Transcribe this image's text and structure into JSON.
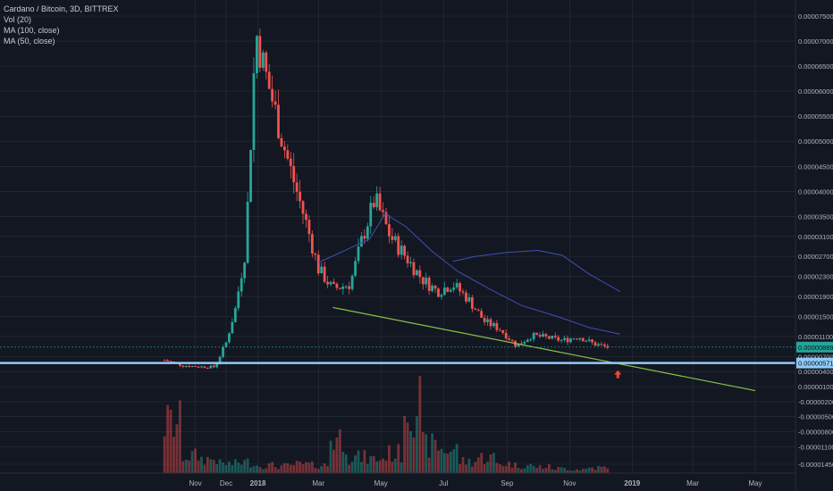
{
  "header": {
    "title": "Cardano / Bitcoin, 3D, BITTREX",
    "indicators": [
      "Vol (20)",
      "MA (100, close)",
      "MA (50, close)"
    ]
  },
  "colors": {
    "background": "#131722",
    "grid": "#2a2e39",
    "up": "#26a69a",
    "down": "#ef5350",
    "ma": "#3f51b5",
    "trendline": "#8bc34a",
    "support": "#90caf9",
    "arrow": "#f44336"
  },
  "chart_data": {
    "type": "candlestick",
    "title": "Cardano / Bitcoin, 3D, BITTREX",
    "price_axis": {
      "ticks": [
        "0.00007500",
        "0.00007000",
        "0.00006500",
        "0.00006000",
        "0.00005500",
        "0.00005000",
        "0.00004500",
        "0.00004000",
        "0.00003500",
        "0.00003100",
        "0.00002700",
        "0.00002300",
        "0.00001900",
        "0.00001500",
        "0.00001100",
        "0.00000700",
        "0.00000400",
        "0.00000100",
        "-0.00000200",
        "-0.00000500",
        "-0.00000800",
        "-0.00001100",
        "-0.00001450"
      ],
      "current_price": "0.00000889",
      "support_price": "0.00000571"
    },
    "time_axis": {
      "labels": [
        "Nov",
        "Dec",
        "2018",
        "Mar",
        "May",
        "Jul",
        "Sep",
        "Nov",
        "2019",
        "Mar",
        "May"
      ]
    },
    "series_close_points": [
      [
        "2017-10-02",
        6.3e-06
      ],
      [
        "2017-10-20",
        5.2e-06
      ],
      [
        "2017-11-05",
        5e-06
      ],
      [
        "2017-11-20",
        4.9e-06
      ],
      [
        "2017-12-01",
        9.8e-06
      ],
      [
        "2017-12-10",
        1.65e-05
      ],
      [
        "2017-12-20",
        2.85e-05
      ],
      [
        "2017-12-30",
        7.2e-05
      ],
      [
        "2018-01-07",
        6.45e-05
      ],
      [
        "2018-01-16",
        5.75e-05
      ],
      [
        "2018-01-25",
        5e-05
      ],
      [
        "2018-02-05",
        4.2e-05
      ],
      [
        "2018-02-18",
        3.3e-05
      ],
      [
        "2018-03-01",
        2.45e-05
      ],
      [
        "2018-03-15",
        2.05e-05
      ],
      [
        "2018-04-01",
        2.15e-05
      ],
      [
        "2018-04-12",
        3e-05
      ],
      [
        "2018-04-25",
        3.85e-05
      ],
      [
        "2018-05-10",
        3.1e-05
      ],
      [
        "2018-05-25",
        2.7e-05
      ],
      [
        "2018-06-10",
        2.25e-05
      ],
      [
        "2018-06-25",
        2e-05
      ],
      [
        "2018-07-10",
        2.15e-05
      ],
      [
        "2018-07-25",
        1.85e-05
      ],
      [
        "2018-08-10",
        1.4e-05
      ],
      [
        "2018-08-25",
        1.25e-05
      ],
      [
        "2018-09-10",
        9.2e-06
      ],
      [
        "2018-09-25",
        1.12e-05
      ],
      [
        "2018-10-10",
        1.08e-05
      ],
      [
        "2018-10-25",
        1.02e-05
      ],
      [
        "2018-11-10",
        1.1e-05
      ],
      [
        "2018-11-25",
        9.5e-06
      ],
      [
        "2018-12-08",
        8.9e-06
      ]
    ],
    "ma_short": [
      [
        "2018-03-01",
        2.58e-05
      ],
      [
        "2018-03-25",
        2.8e-05
      ],
      [
        "2018-04-20",
        3.05e-05
      ],
      [
        "2018-05-05",
        3.55e-05
      ],
      [
        "2018-05-25",
        3.3e-05
      ],
      [
        "2018-06-20",
        2.8e-05
      ],
      [
        "2018-07-15",
        2.4e-05
      ],
      [
        "2018-08-15",
        2.05e-05
      ],
      [
        "2018-09-15",
        1.72e-05
      ],
      [
        "2018-10-20",
        1.5e-05
      ],
      [
        "2018-11-20",
        1.28e-05
      ],
      [
        "2018-12-20",
        1.15e-05
      ]
    ],
    "ma_long": [
      [
        "2018-07-10",
        2.6e-05
      ],
      [
        "2018-08-01",
        2.7e-05
      ],
      [
        "2018-09-01",
        2.78e-05
      ],
      [
        "2018-10-01",
        2.82e-05
      ],
      [
        "2018-10-25",
        2.72e-05
      ],
      [
        "2018-11-20",
        2.35e-05
      ],
      [
        "2018-12-20",
        2e-05
      ]
    ],
    "trendline": {
      "start": [
        "2018-03-15",
        1.68e-05
      ],
      "end": [
        "2019-05-01",
        2e-07
      ]
    },
    "volume_relative": [
      0.63,
      0.22,
      0.18,
      0.12,
      0.14,
      0.1,
      0.09,
      0.11,
      0.1,
      0.45,
      0.2,
      0.18,
      0.25,
      0.9,
      0.35,
      0.3,
      0.15,
      0.2,
      0.12,
      0.1,
      0.08,
      0.06,
      0.05,
      0.07,
      0.05,
      0.04,
      0.05,
      0.03,
      0.04,
      0.03,
      0.04,
      0.03,
      0.02
    ],
    "grid": true
  }
}
